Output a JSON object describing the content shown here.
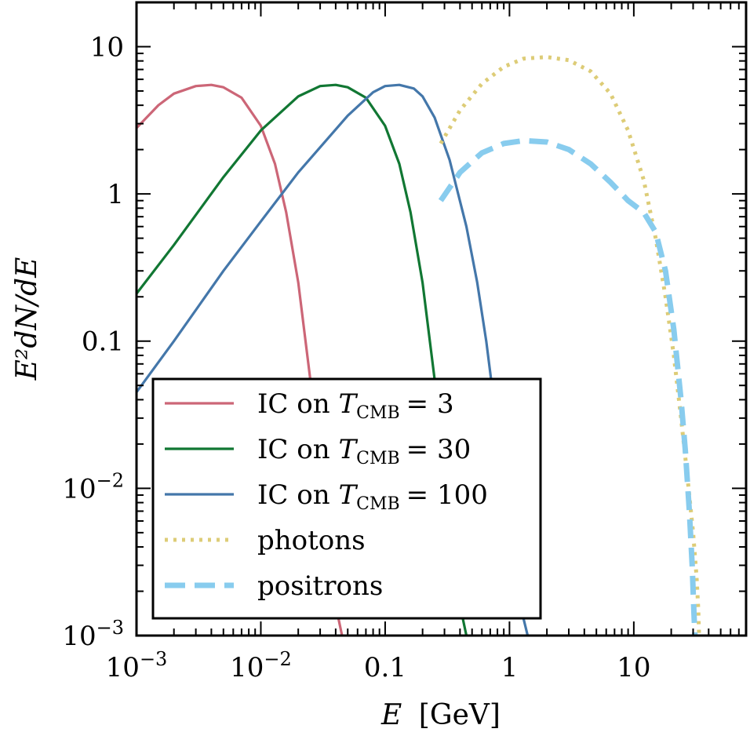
{
  "chart_data": {
    "type": "line",
    "xlabel_prefix": "E",
    "xlabel_suffix": "[GeV]",
    "ylabel": "E²dN/dE",
    "xscale": "log",
    "yscale": "log",
    "xlim": [
      0.001,
      80
    ],
    "ylim": [
      0.001,
      20
    ],
    "x_ticks": [
      {
        "value": 0.001,
        "base": "10",
        "exp": "−3"
      },
      {
        "value": 0.01,
        "base": "10",
        "exp": "−2"
      },
      {
        "value": 0.1,
        "base": "0.1",
        "exp": ""
      },
      {
        "value": 1,
        "base": "1",
        "exp": ""
      },
      {
        "value": 10,
        "base": "10",
        "exp": ""
      }
    ],
    "y_ticks": [
      {
        "value": 0.001,
        "base": "10",
        "exp": "−3"
      },
      {
        "value": 0.01,
        "base": "10",
        "exp": "−2"
      },
      {
        "value": 0.1,
        "base": "0.1",
        "exp": ""
      },
      {
        "value": 1,
        "base": "1",
        "exp": ""
      },
      {
        "value": 10,
        "base": "10",
        "exp": ""
      }
    ],
    "legend_position": "lower-left",
    "series": [
      {
        "name": "IC on T_CMB = 3",
        "legend_prefix": "IC on ",
        "legend_var": "T",
        "legend_sub": "CMB",
        "legend_value": "= 3",
        "color": "#cc6677",
        "style": "solid",
        "x": [
          0.001,
          0.0015,
          0.002,
          0.003,
          0.004,
          0.005,
          0.007,
          0.01,
          0.013,
          0.016,
          0.02,
          0.025,
          0.03,
          0.035,
          0.04,
          0.045
        ],
        "y": [
          2.8,
          4.0,
          4.8,
          5.4,
          5.5,
          5.3,
          4.5,
          2.9,
          1.6,
          0.75,
          0.25,
          0.055,
          0.012,
          0.0035,
          0.0016,
          0.001
        ]
      },
      {
        "name": "IC on T_CMB = 30",
        "legend_prefix": "IC on ",
        "legend_var": "T",
        "legend_sub": "CMB",
        "legend_value": "= 30",
        "color": "#117733",
        "style": "solid",
        "x": [
          0.001,
          0.002,
          0.005,
          0.01,
          0.02,
          0.03,
          0.04,
          0.05,
          0.07,
          0.1,
          0.13,
          0.16,
          0.2,
          0.25,
          0.3,
          0.35,
          0.4,
          0.45
        ],
        "y": [
          0.21,
          0.45,
          1.3,
          2.7,
          4.6,
          5.4,
          5.5,
          5.3,
          4.5,
          2.9,
          1.6,
          0.75,
          0.25,
          0.055,
          0.012,
          0.0035,
          0.0016,
          0.001
        ]
      },
      {
        "name": "IC on T_CMB = 100",
        "legend_prefix": "IC on ",
        "legend_var": "T",
        "legend_sub": "CMB",
        "legend_value": "= 100",
        "color": "#4477aa",
        "style": "solid",
        "x": [
          0.001,
          0.002,
          0.005,
          0.01,
          0.02,
          0.05,
          0.08,
          0.1,
          0.13,
          0.17,
          0.2,
          0.25,
          0.33,
          0.45,
          0.55,
          0.65,
          0.8,
          1.0,
          1.2,
          1.4
        ],
        "y": [
          0.045,
          0.1,
          0.3,
          0.65,
          1.4,
          3.4,
          4.9,
          5.4,
          5.5,
          5.2,
          4.6,
          3.3,
          1.7,
          0.6,
          0.25,
          0.1,
          0.025,
          0.0045,
          0.0017,
          0.001
        ]
      },
      {
        "name": "photons",
        "color": "#ddcc77",
        "style": "dotted",
        "x": [
          0.28,
          0.4,
          0.6,
          0.9,
          1.3,
          2.0,
          3.0,
          4.5,
          6.5,
          9.0,
          12.0,
          15.0,
          18.0,
          21.0,
          24.0,
          27.0,
          30.0,
          32.0,
          33.0,
          33.5
        ],
        "y": [
          2.2,
          3.7,
          5.6,
          7.3,
          8.3,
          8.5,
          8.1,
          6.8,
          4.8,
          2.7,
          1.25,
          0.5,
          0.2,
          0.08,
          0.03,
          0.012,
          0.005,
          0.0025,
          0.0015,
          0.001
        ]
      },
      {
        "name": "positrons",
        "color": "#88ccee",
        "style": "dashed",
        "x": [
          0.28,
          0.4,
          0.6,
          0.9,
          1.3,
          2.0,
          3.0,
          4.5,
          6.5,
          9.0,
          12.0,
          15.0,
          18.0,
          21.0,
          24.0,
          26.0,
          28.0,
          29.5,
          30.5,
          31.0
        ],
        "y": [
          0.9,
          1.4,
          1.9,
          2.2,
          2.3,
          2.25,
          2.0,
          1.6,
          1.2,
          0.9,
          0.75,
          0.55,
          0.3,
          0.12,
          0.04,
          0.018,
          0.007,
          0.003,
          0.0014,
          0.001
        ]
      }
    ]
  }
}
